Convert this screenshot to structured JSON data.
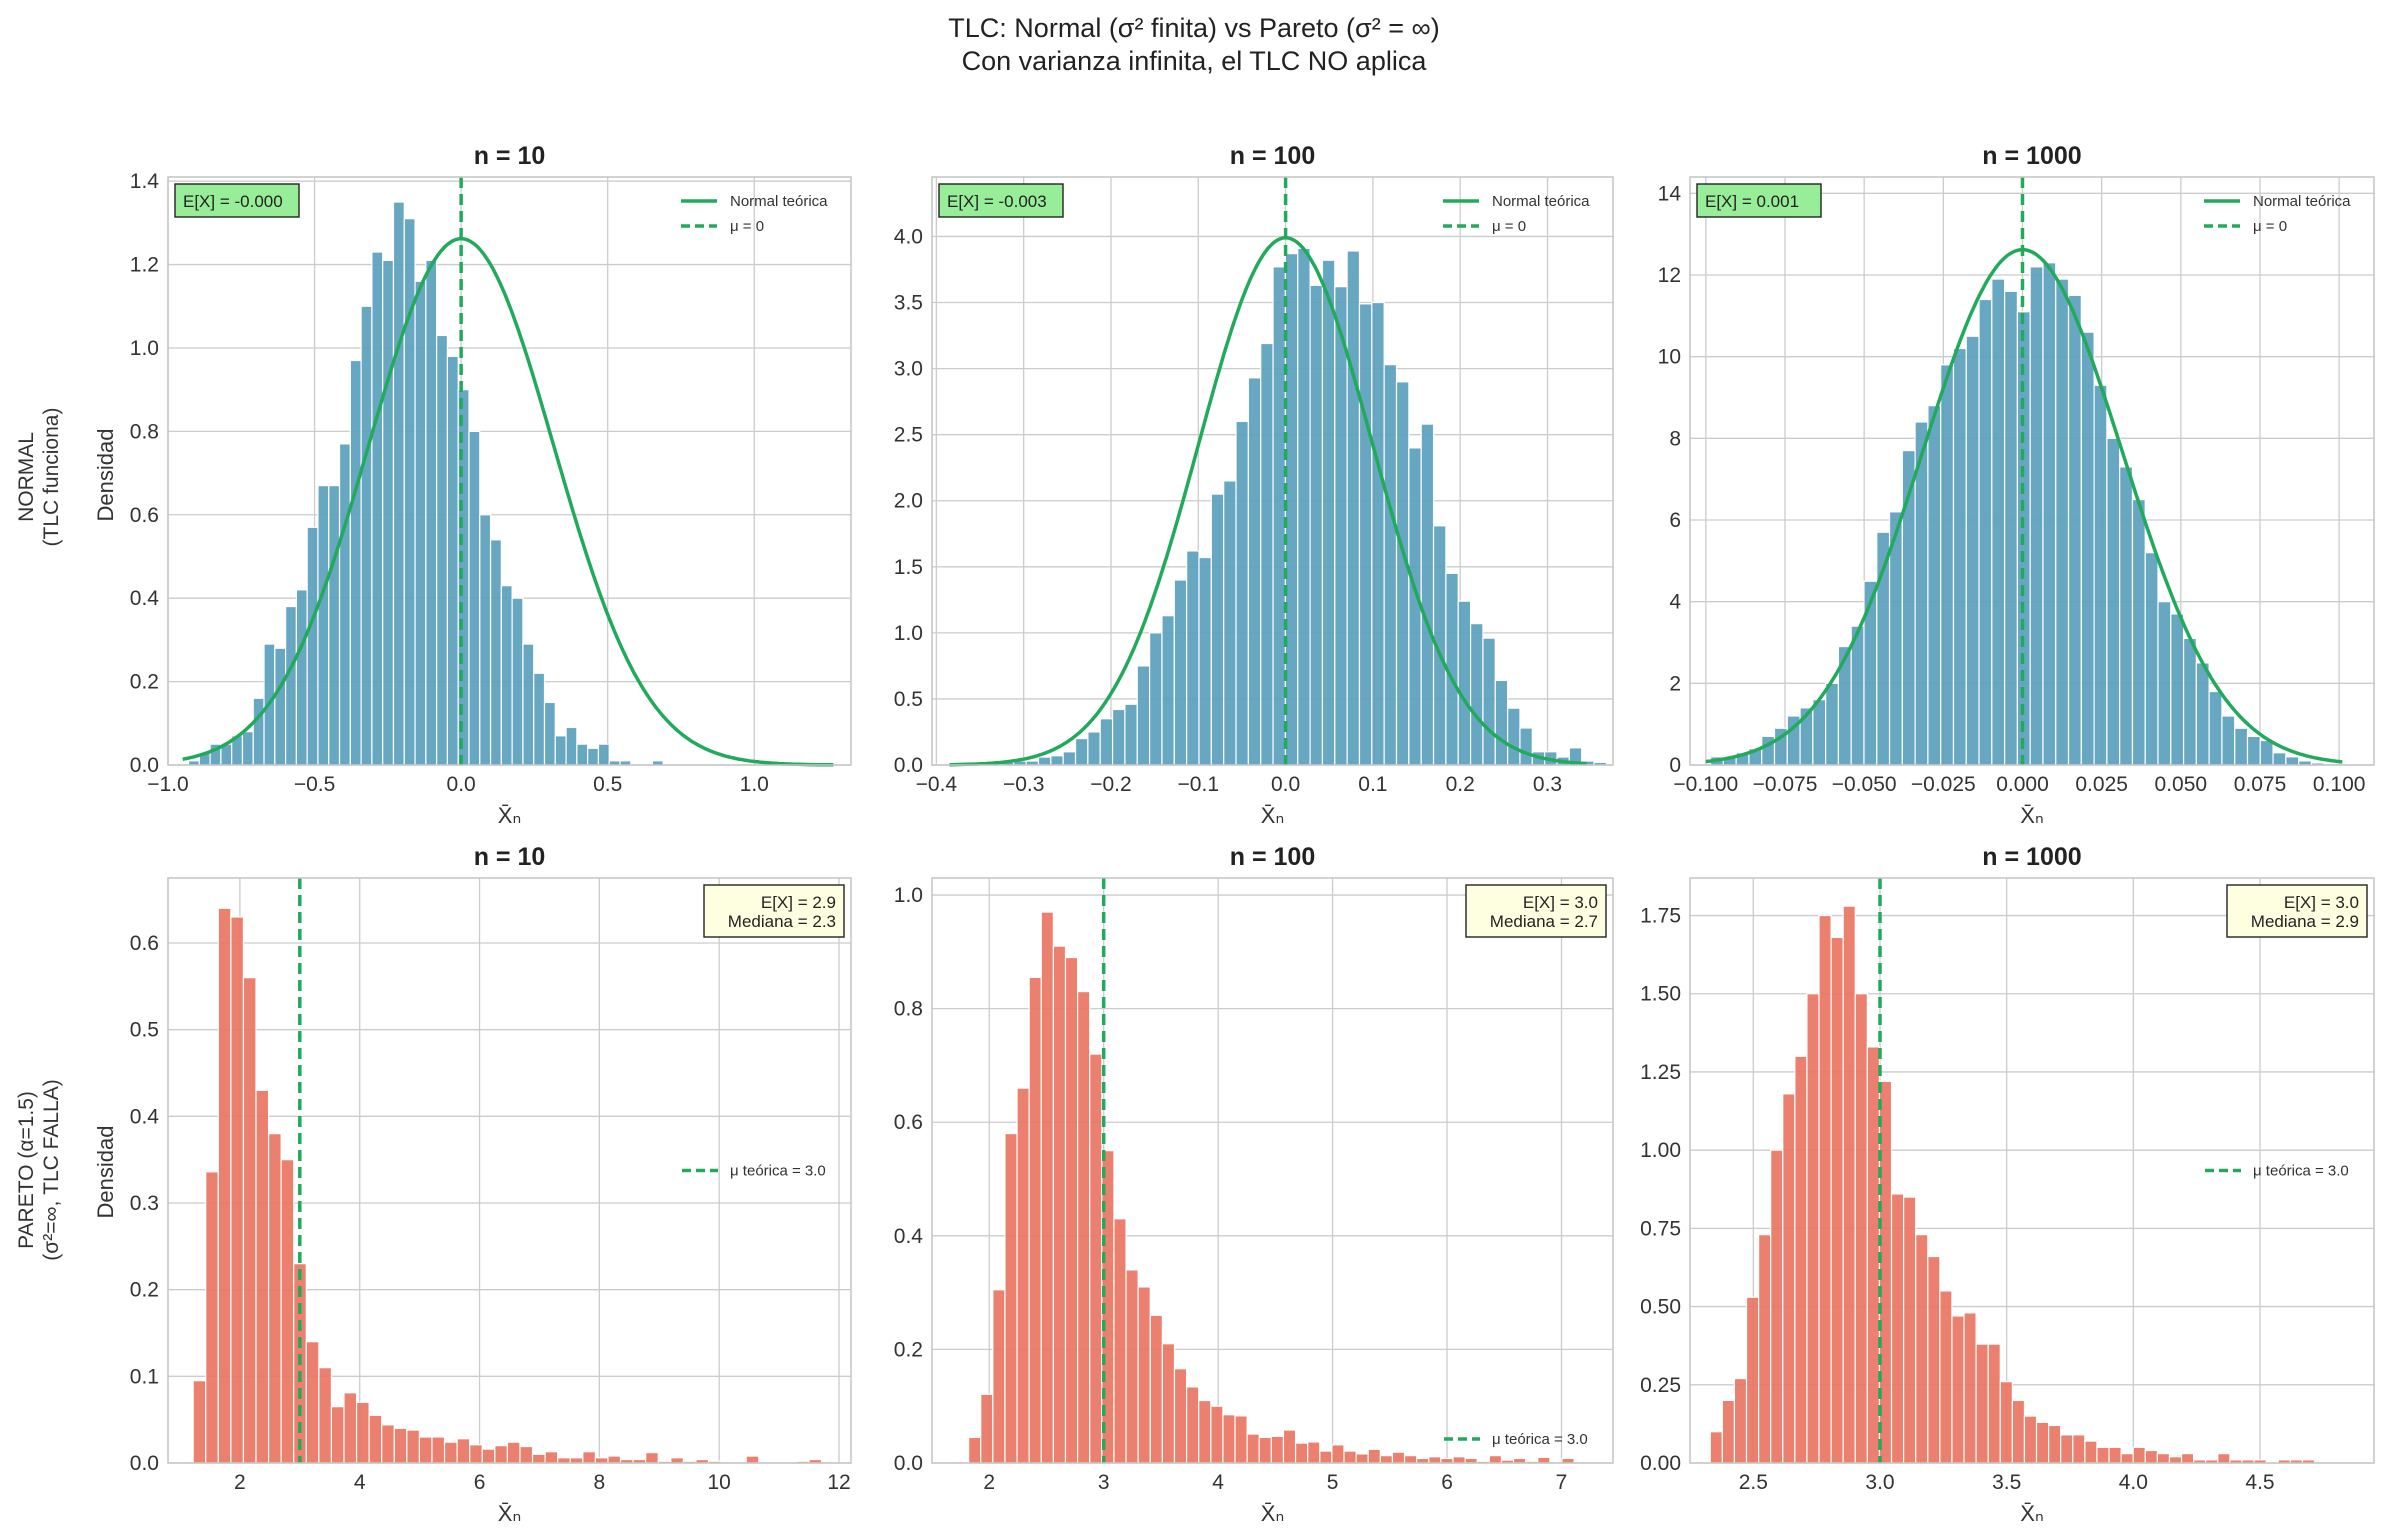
{
  "title_lines": [
    "TLC: Normal (σ² finita) vs Pareto (σ² = ∞)",
    "Con varianza infinita, el TLC NO aplica"
  ],
  "colors": {
    "normal_bar": "#5b9fbd",
    "pareto_bar": "#ea7563",
    "curve": "#22aa5c",
    "mean_box": "#98ee98",
    "stats_box": "#fefee0",
    "grid": "#cccccc",
    "spine": "#c4c4c4"
  },
  "row_labels": [
    [
      "NORMAL",
      "(TLC funciona)"
    ],
    [
      "PARETO (α=1.5)",
      "(σ²=∞, TLC FALLA)"
    ]
  ],
  "ylabel": "Densidad",
  "xlabel": "X̄ₙ",
  "chart_data": [
    {
      "type": "bar",
      "id": "normal-10",
      "title": "n = 10",
      "row": 0,
      "col": 0,
      "family": "normal",
      "xlim": [
        -1.0,
        1.33
      ],
      "ylim": [
        0,
        1.41
      ],
      "xticks": [
        -1.0,
        -0.5,
        0.0,
        0.5,
        1.0
      ],
      "xtick_labels": [
        "−1.0",
        "−0.5",
        "0.0",
        "0.5",
        "1.0"
      ],
      "yticks": [
        0,
        0.2,
        0.4,
        0.6,
        0.8,
        1.0,
        1.2,
        1.4
      ],
      "ytick_labels": [
        "0.0",
        "0.2",
        "0.4",
        "0.6",
        "0.8",
        "1.0",
        "1.2",
        "1.4"
      ],
      "bin_start": -0.93,
      "bin_width": 0.0368,
      "values": [
        0.01,
        0.03,
        0.05,
        0.05,
        0.07,
        0.08,
        0.16,
        0.29,
        0.28,
        0.38,
        0.42,
        0.57,
        0.67,
        0.67,
        0.77,
        0.97,
        1.1,
        1.23,
        1.21,
        1.35,
        1.31,
        1.16,
        1.21,
        1.03,
        0.98,
        0.9,
        0.8,
        0.6,
        0.54,
        0.43,
        0.4,
        0.29,
        0.22,
        0.15,
        0.07,
        0.09,
        0.05,
        0.04,
        0.05,
        0.01,
        0.01,
        0,
        0,
        0.01,
        0,
        0,
        0,
        0,
        0,
        0,
        0
      ],
      "curve": {
        "type": "normal",
        "mean": 0.0,
        "sd": 0.316,
        "peak": 1.262,
        "x_from": -0.95,
        "x_to": 1.27,
        "label": "Normal teórica"
      },
      "vline": {
        "x": 0.0,
        "label": "μ = 0"
      },
      "info_lines": [
        "E[X] = -0.000"
      ]
    },
    {
      "type": "bar",
      "id": "normal-100",
      "title": "n = 100",
      "row": 0,
      "col": 1,
      "family": "normal",
      "xlim": [
        -0.405,
        0.375
      ],
      "ylim": [
        0,
        4.45
      ],
      "xticks": [
        -0.4,
        -0.3,
        -0.2,
        -0.1,
        0.0,
        0.1,
        0.2,
        0.3
      ],
      "xtick_labels": [
        "−0.4",
        "−0.3",
        "−0.2",
        "−0.1",
        "0.0",
        "0.1",
        "0.2",
        "0.3"
      ],
      "yticks": [
        0,
        0.5,
        1.0,
        1.5,
        2.0,
        2.5,
        3.0,
        3.5,
        4.0
      ],
      "ytick_labels": [
        "0.0",
        "0.5",
        "1.0",
        "1.5",
        "2.0",
        "2.5",
        "3.0",
        "3.5",
        "4.0"
      ],
      "bin_start": -0.382,
      "bin_width": 0.01414,
      "values": [
        0.01,
        0,
        0.01,
        0,
        0.02,
        0.03,
        0.03,
        0.06,
        0.07,
        0.1,
        0.2,
        0.25,
        0.35,
        0.42,
        0.46,
        0.75,
        1.0,
        1.13,
        1.4,
        1.62,
        1.57,
        2.05,
        2.15,
        2.6,
        2.93,
        3.19,
        3.77,
        3.87,
        3.91,
        3.63,
        3.82,
        3.62,
        3.89,
        3.49,
        3.5,
        3.03,
        2.9,
        2.4,
        2.58,
        1.81,
        1.45,
        1.24,
        1.07,
        0.96,
        0.64,
        0.43,
        0.28,
        0.1,
        0.1,
        0.06,
        0.13,
        0.03,
        0.02,
        0,
        0
      ],
      "curve": {
        "type": "normal",
        "mean": 0.0,
        "sd": 0.1,
        "peak": 3.99,
        "x_from": -0.385,
        "x_to": 0.345,
        "label": "Normal teórica"
      },
      "vline": {
        "x": 0.0,
        "label": "μ = 0"
      },
      "info_lines": [
        "E[X] = -0.003"
      ]
    },
    {
      "type": "bar",
      "id": "normal-1000",
      "title": "n = 1000",
      "row": 0,
      "col": 2,
      "family": "normal",
      "xlim": [
        -0.105,
        0.111
      ],
      "ylim": [
        0,
        14.4
      ],
      "xticks": [
        -0.1,
        -0.075,
        -0.05,
        -0.025,
        0.0,
        0.025,
        0.05,
        0.075,
        0.1
      ],
      "xtick_labels": [
        "−0.100",
        "−0.075",
        "−0.050",
        "−0.025",
        "0.000",
        "0.025",
        "0.050",
        "0.075",
        "0.100"
      ],
      "yticks": [
        0,
        2,
        4,
        6,
        8,
        10,
        12,
        14
      ],
      "ytick_labels": [
        "0",
        "2",
        "4",
        "6",
        "8",
        "10",
        "12",
        "14"
      ],
      "bin_start": -0.0985,
      "bin_width": 0.004037,
      "values": [
        0.2,
        0.2,
        0.3,
        0.4,
        0.7,
        0.9,
        1.2,
        1.4,
        1.6,
        2.0,
        2.9,
        3.4,
        4.5,
        5.7,
        6.2,
        7.7,
        8.4,
        8.8,
        9.8,
        10.2,
        10.5,
        11.4,
        11.9,
        11.6,
        11.1,
        12.2,
        12.3,
        11.9,
        11.5,
        10.6,
        9.3,
        8.0,
        7.3,
        6.5,
        5.2,
        4.0,
        3.7,
        3.1,
        2.5,
        1.8,
        1.2,
        0.9,
        0.7,
        0.6,
        0.3,
        0.2,
        0.1,
        0.05,
        0,
        0,
        0,
        0,
        0
      ],
      "curve": {
        "type": "normal",
        "mean": 0.0,
        "sd": 0.0316,
        "peak": 12.62,
        "x_from": -0.1,
        "x_to": 0.101,
        "label": "Normal teórica"
      },
      "vline": {
        "x": 0.0,
        "label": "μ = 0"
      },
      "info_lines": [
        "E[X] = 0.001"
      ]
    },
    {
      "type": "bar",
      "id": "pareto-10",
      "title": "n = 10",
      "row": 1,
      "col": 0,
      "family": "pareto",
      "xlim": [
        0.8,
        12.2
      ],
      "ylim": [
        0,
        0.675
      ],
      "xticks": [
        2,
        4,
        6,
        8,
        10,
        12
      ],
      "xtick_labels": [
        "2",
        "4",
        "6",
        "8",
        "10",
        "12"
      ],
      "yticks": [
        0,
        0.1,
        0.2,
        0.3,
        0.4,
        0.5,
        0.6
      ],
      "ytick_labels": [
        "0.0",
        "0.1",
        "0.2",
        "0.3",
        "0.4",
        "0.5",
        "0.6"
      ],
      "bin_start": 1.22,
      "bin_width": 0.2098,
      "values": [
        0.095,
        0.336,
        0.64,
        0.63,
        0.56,
        0.43,
        0.38,
        0.35,
        0.23,
        0.14,
        0.11,
        0.065,
        0.081,
        0.07,
        0.055,
        0.044,
        0.04,
        0.038,
        0.03,
        0.03,
        0.024,
        0.028,
        0.021,
        0.016,
        0.02,
        0.024,
        0.019,
        0.01,
        0.013,
        0.006,
        0.006,
        0.013,
        0.006,
        0.008,
        0.004,
        0.004,
        0.012,
        0.002,
        0.006,
        0.002,
        0.004,
        0.002,
        0,
        0,
        0.008,
        0,
        0,
        0,
        0.002,
        0.004
      ],
      "vline": {
        "x": 3.0,
        "label": "μ teórica = 3.0"
      },
      "legend_pos": "center-right",
      "info_lines": [
        "E[X] = 2.9",
        "Mediana = 2.3"
      ]
    },
    {
      "type": "bar",
      "id": "pareto-100",
      "title": "n = 100",
      "row": 1,
      "col": 1,
      "family": "pareto",
      "xlim": [
        1.5,
        7.45
      ],
      "ylim": [
        0,
        1.03
      ],
      "xticks": [
        2,
        3,
        4,
        5,
        6,
        7
      ],
      "xtick_labels": [
        "2",
        "3",
        "4",
        "5",
        "6",
        "7"
      ],
      "yticks": [
        0,
        0.2,
        0.4,
        0.6,
        0.8,
        1.0
      ],
      "ytick_labels": [
        "0.0",
        "0.2",
        "0.4",
        "0.6",
        "0.8",
        "1.0"
      ],
      "bin_start": 1.82,
      "bin_width": 0.1058,
      "values": [
        0.045,
        0.121,
        0.305,
        0.58,
        0.66,
        0.855,
        0.97,
        0.91,
        0.89,
        0.83,
        0.72,
        0.55,
        0.43,
        0.34,
        0.31,
        0.26,
        0.21,
        0.166,
        0.134,
        0.11,
        0.1,
        0.085,
        0.083,
        0.051,
        0.045,
        0.047,
        0.058,
        0.035,
        0.037,
        0.021,
        0.032,
        0.021,
        0.016,
        0.024,
        0.013,
        0.019,
        0.013,
        0.008,
        0.011,
        0.008,
        0.011,
        0.008,
        0.003,
        0.013,
        0.005,
        0.008,
        0.003,
        0.01,
        0,
        0.008
      ],
      "vline": {
        "x": 3.0,
        "label": "μ teórica = 3.0"
      },
      "legend_pos": "lower-right",
      "info_lines": [
        "E[X] = 3.0",
        "Mediana = 2.7"
      ]
    },
    {
      "type": "bar",
      "id": "pareto-1000",
      "title": "n = 1000",
      "row": 1,
      "col": 2,
      "family": "pareto",
      "xlim": [
        2.25,
        4.95
      ],
      "ylim": [
        0,
        1.87
      ],
      "xticks": [
        2.5,
        3.0,
        3.5,
        4.0,
        4.5
      ],
      "xtick_labels": [
        "2.5",
        "3.0",
        "3.5",
        "4.0",
        "4.5"
      ],
      "yticks": [
        0,
        0.25,
        0.5,
        0.75,
        1.0,
        1.25,
        1.5,
        1.75
      ],
      "ytick_labels": [
        "0.00",
        "0.25",
        "0.50",
        "0.75",
        "1.00",
        "1.25",
        "1.50",
        "1.75"
      ],
      "bin_start": 2.33,
      "bin_width": 0.0477,
      "values": [
        0.1,
        0.2,
        0.27,
        0.53,
        0.73,
        1.0,
        1.18,
        1.3,
        1.5,
        1.75,
        1.68,
        1.78,
        1.5,
        1.33,
        1.22,
        0.86,
        0.85,
        0.73,
        0.66,
        0.55,
        0.47,
        0.48,
        0.38,
        0.38,
        0.26,
        0.2,
        0.15,
        0.13,
        0.12,
        0.09,
        0.09,
        0.07,
        0.05,
        0.05,
        0.03,
        0.05,
        0.04,
        0.03,
        0.02,
        0.03,
        0.01,
        0.01,
        0.03,
        0.01,
        0.01,
        0.01,
        0,
        0.01,
        0.01,
        0.01
      ],
      "vline": {
        "x": 3.0,
        "label": "μ teórica = 3.0"
      },
      "legend_pos": "center-right",
      "info_lines": [
        "E[X] = 3.0",
        "Mediana = 2.9"
      ]
    }
  ]
}
